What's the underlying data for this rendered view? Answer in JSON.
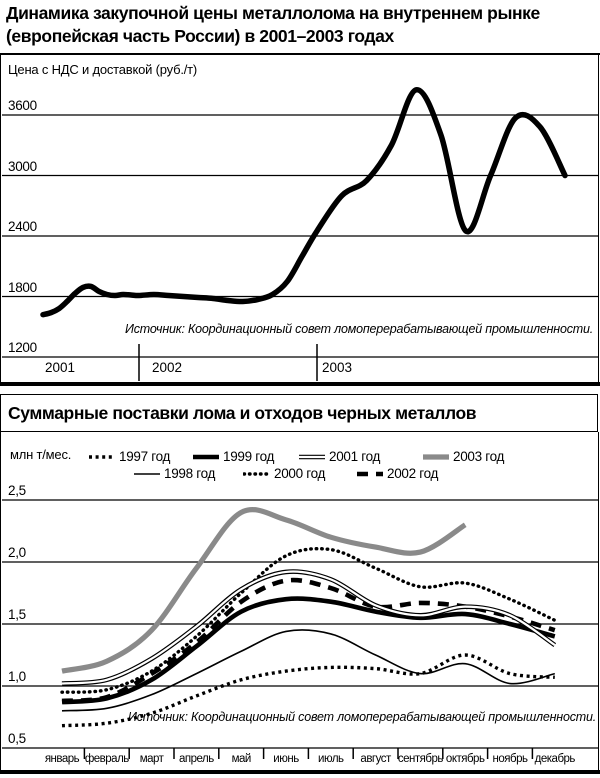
{
  "page": {
    "title_lines": [
      "Динамика закупочной цены металлолома на внутреннем рынке",
      "(европейская часть России) в 2001–2003 годах"
    ]
  },
  "colors": {
    "ink": "#000000",
    "gray_2003": "#8a8a8a",
    "background": "#ffffff"
  },
  "chart_data": [
    {
      "type": "line",
      "title": "Динамика закупочной цены металлолома на внутреннем рынке (европейская часть России) в 2001–2003 годах",
      "ylabel": "Цена с НДС и доставкой (руб./т)",
      "yticks": [
        3600,
        3000,
        2400,
        1800,
        1200
      ],
      "ylim": [
        1200,
        3900
      ],
      "grid": true,
      "legend_position": "none",
      "source": "Источник: Координационный совет ломоперерабатывающей промышленности.",
      "x_groups": [
        {
          "label": "2001",
          "values": [
            1620,
            1640,
            1680,
            1750,
            1830,
            1890,
            1900,
            1850,
            1820,
            1810,
            1820,
            1815
          ]
        },
        {
          "label": "2002",
          "values": [
            1810,
            1820,
            1810,
            1800,
            1790,
            1780,
            1760,
            1750,
            1770,
            1820,
            1950,
            2200
          ]
        },
        {
          "label": "2003",
          "values": [
            2450,
            2800,
            2950,
            3300,
            3850,
            3400,
            2450,
            3000,
            3570,
            3480,
            3000
          ]
        }
      ],
      "series_color": "#000000"
    },
    {
      "type": "line",
      "title": "Суммарные поставки лома и отходов черных металлов",
      "unit_label": "млн т/мес.",
      "ytick_labels": [
        "2,5",
        "2,0",
        "1,5",
        "1,0",
        "0,5"
      ],
      "ytick_values": [
        2.5,
        2.0,
        1.5,
        1.0,
        0.5
      ],
      "ylim": [
        0.5,
        2.6
      ],
      "grid": true,
      "legend_position": "top",
      "source": "Источник: Координационный совет ломоперерабатывающей промышленности.",
      "categories": [
        "январь",
        "февраль",
        "март",
        "апрель",
        "май",
        "июнь",
        "июль",
        "август",
        "сентябрь",
        "октябрь",
        "ноябрь",
        "декабрь"
      ],
      "series": [
        {
          "name": "1997 год",
          "style": "dotted-square",
          "color": "#000000",
          "values": [
            0.68,
            0.7,
            0.78,
            0.92,
            1.05,
            1.12,
            1.15,
            1.14,
            1.1,
            1.25,
            1.1,
            1.07
          ]
        },
        {
          "name": "1998 год",
          "style": "solid-thin",
          "color": "#000000",
          "values": [
            0.8,
            0.82,
            0.93,
            1.1,
            1.28,
            1.44,
            1.42,
            1.25,
            1.1,
            1.18,
            1.02,
            1.1
          ]
        },
        {
          "name": "1999 год",
          "style": "solid-thick",
          "color": "#000000",
          "values": [
            0.87,
            0.9,
            1.05,
            1.32,
            1.6,
            1.7,
            1.68,
            1.6,
            1.55,
            1.58,
            1.5,
            1.4
          ]
        },
        {
          "name": "2000 год",
          "style": "diamond-dots",
          "color": "#000000",
          "values": [
            0.95,
            0.97,
            1.12,
            1.4,
            1.75,
            2.05,
            2.1,
            1.95,
            1.8,
            1.83,
            1.7,
            1.53
          ]
        },
        {
          "name": "2001 год",
          "style": "double-line",
          "color": "#000000",
          "values": [
            1.02,
            1.05,
            1.22,
            1.48,
            1.78,
            1.92,
            1.86,
            1.65,
            1.57,
            1.64,
            1.57,
            1.33
          ]
        },
        {
          "name": "2002 год",
          "style": "dashed-thick",
          "color": "#000000",
          "values": [
            0.88,
            0.91,
            1.1,
            1.35,
            1.68,
            1.85,
            1.79,
            1.64,
            1.67,
            1.64,
            1.56,
            1.45
          ]
        },
        {
          "name": "2003 год",
          "style": "solid-gray",
          "color": "#8a8a8a",
          "values": [
            1.12,
            1.2,
            1.45,
            1.95,
            2.4,
            2.34,
            2.2,
            2.12,
            2.08,
            2.3
          ]
        }
      ]
    }
  ]
}
